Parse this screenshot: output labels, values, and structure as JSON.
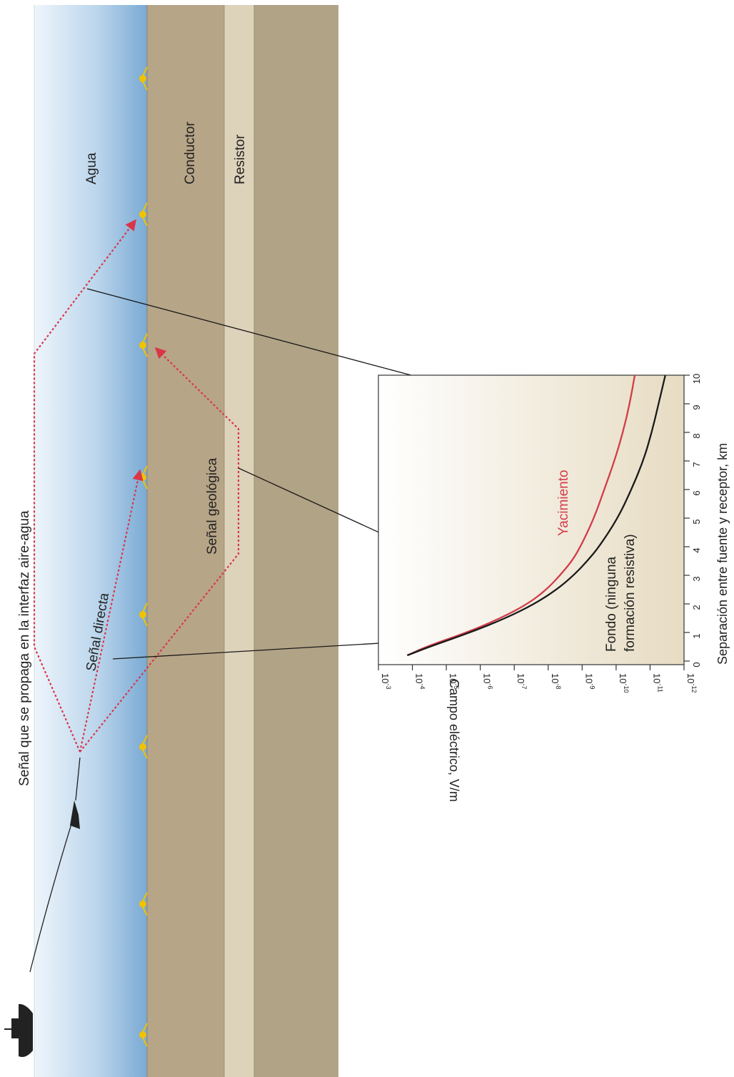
{
  "diagram": {
    "layers": {
      "water": "Agua",
      "conductor": "Conductor",
      "resistor": "Resistor"
    },
    "signals": {
      "air_water": "Señal que se propaga en la interfaz aire-agua",
      "direct": "Señal directa",
      "geologic": "Señal geológica"
    },
    "colors": {
      "signal_path": "#d9364a",
      "receiver": "#f2c200",
      "water_light": "#e6f0f8",
      "water_dark": "#7aaad4",
      "conductor": "#b7a587",
      "resistor": "#ddd2ba",
      "deep": "#b1a385"
    }
  },
  "chart_data": {
    "type": "line",
    "xlabel": "Separación entre fuente y receptor, km",
    "ylabel": "Campo eléctrico, V/m",
    "xlim": [
      0,
      10
    ],
    "ylim_exponent": [
      -3,
      -12
    ],
    "y_scale": "log",
    "x_ticks": [
      "0",
      "1",
      "2",
      "3",
      "4",
      "5",
      "6",
      "7",
      "8",
      "9",
      "10"
    ],
    "y_ticks": [
      {
        "base": "10",
        "exp": "-3"
      },
      {
        "base": "10",
        "exp": "-4"
      },
      {
        "base": "10",
        "exp": "-5"
      },
      {
        "base": "10",
        "exp": "-6"
      },
      {
        "base": "10",
        "exp": "-7"
      },
      {
        "base": "10",
        "exp": "-8"
      },
      {
        "base": "10",
        "exp": "-9"
      },
      {
        "base": "10",
        "exp": "-10"
      },
      {
        "base": "10",
        "exp": "-11"
      },
      {
        "base": "10",
        "exp": "-12"
      }
    ],
    "series": [
      {
        "name": "Yacimiento",
        "color": "#d23c49",
        "x": [
          0.2,
          0.5,
          1.0,
          1.5,
          2.0,
          2.5,
          3.0,
          3.5,
          4.0,
          5.0,
          6.0,
          7.0,
          8.0,
          9.0,
          10.0
        ],
        "log10_y": [
          -3.85,
          -4.4,
          -5.6,
          -6.6,
          -7.4,
          -7.95,
          -8.35,
          -8.7,
          -8.95,
          -9.35,
          -9.65,
          -9.95,
          -10.2,
          -10.4,
          -10.55
        ]
      },
      {
        "name": "Fondo (ninguna formación resistiva)",
        "name_lines": [
          "Fondo (ninguna",
          "formación resistiva)"
        ],
        "color": "#1a1a1a",
        "x": [
          0.2,
          0.5,
          1.0,
          1.5,
          2.0,
          2.5,
          3.0,
          3.5,
          4.0,
          5.0,
          6.0,
          7.0,
          8.0,
          9.0,
          10.0
        ],
        "log10_y": [
          -3.85,
          -4.5,
          -5.7,
          -6.75,
          -7.6,
          -8.25,
          -8.75,
          -9.15,
          -9.5,
          -10.05,
          -10.45,
          -10.8,
          -11.05,
          -11.25,
          -11.45
        ]
      }
    ]
  }
}
